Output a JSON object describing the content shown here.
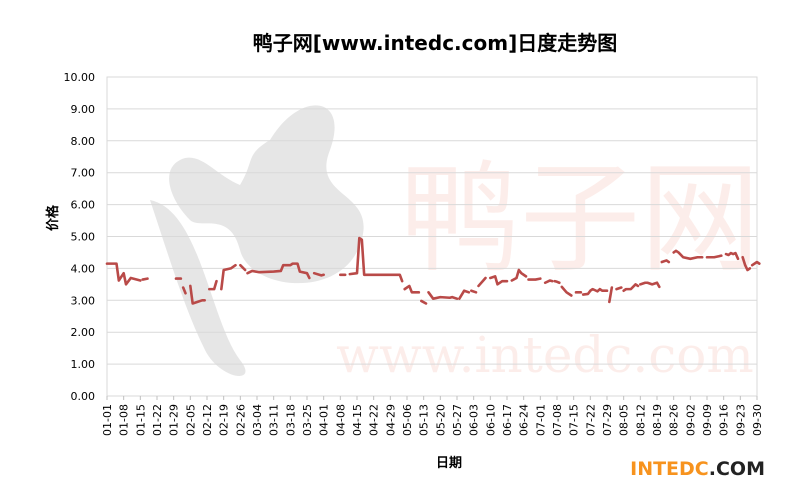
{
  "chart_data": {
    "type": "line",
    "title": "鸭子网[www.intedc.com]日度走势图",
    "xlabel": "日期",
    "ylabel": "价格",
    "ylim": [
      0,
      10
    ],
    "y_ticks": [
      "0.00",
      "1.00",
      "2.00",
      "3.00",
      "4.00",
      "5.00",
      "6.00",
      "7.00",
      "8.00",
      "9.00",
      "10.00"
    ],
    "grid": true,
    "categories": [
      "01-01",
      "01-08",
      "01-15",
      "01-22",
      "01-29",
      "02-05",
      "02-12",
      "02-19",
      "02-26",
      "03-04",
      "03-11",
      "03-18",
      "03-25",
      "04-01",
      "04-08",
      "04-15",
      "04-22",
      "04-29",
      "05-06",
      "05-13",
      "05-20",
      "05-27",
      "06-03",
      "06-10",
      "06-17",
      "06-24",
      "07-01",
      "07-08",
      "07-15",
      "07-22",
      "07-29",
      "08-05",
      "08-12",
      "08-19",
      "08-26",
      "09-02",
      "09-09",
      "09-16",
      "09-23",
      "09-30"
    ],
    "series": [
      {
        "color": "#b94a48",
        "segments": [
          [
            [
              0,
              4.15
            ],
            [
              0.57,
              4.15
            ],
            [
              0.71,
              3.62
            ],
            [
              1.0,
              3.85
            ],
            [
              1.14,
              3.5
            ],
            [
              1.43,
              3.7
            ],
            [
              2.0,
              3.62
            ]
          ],
          [
            [
              2.14,
              3.65
            ],
            [
              2.43,
              3.68
            ]
          ],
          [
            [
              4.14,
              3.68
            ],
            [
              4.43,
              3.68
            ]
          ],
          [
            [
              4.57,
              3.4
            ],
            [
              4.71,
              3.22
            ]
          ],
          [
            [
              5.0,
              3.45
            ],
            [
              5.14,
              2.9
            ],
            [
              5.43,
              2.95
            ],
            [
              5.71,
              3.0
            ],
            [
              5.86,
              3.0
            ]
          ],
          [
            [
              6.14,
              3.35
            ],
            [
              6.43,
              3.35
            ],
            [
              6.57,
              3.6
            ]
          ],
          [
            [
              6.86,
              3.35
            ],
            [
              7.0,
              3.95
            ],
            [
              7.43,
              4.0
            ],
            [
              7.71,
              4.1
            ]
          ],
          [
            [
              8.0,
              4.1
            ],
            [
              8.29,
              3.95
            ]
          ],
          [
            [
              8.43,
              3.85
            ],
            [
              8.71,
              3.92
            ],
            [
              9.14,
              3.88
            ],
            [
              10.0,
              3.9
            ],
            [
              10.43,
              3.92
            ],
            [
              10.57,
              4.1
            ],
            [
              11.0,
              4.1
            ],
            [
              11.14,
              4.15
            ],
            [
              11.43,
              4.15
            ],
            [
              11.57,
              3.9
            ],
            [
              12.0,
              3.85
            ],
            [
              12.14,
              3.7
            ]
          ],
          [
            [
              12.43,
              3.85
            ],
            [
              12.86,
              3.78
            ],
            [
              13.0,
              3.8
            ]
          ],
          [
            [
              14.0,
              3.8
            ],
            [
              14.29,
              3.8
            ]
          ],
          [
            [
              14.57,
              3.82
            ],
            [
              15.0,
              3.85
            ],
            [
              15.14,
              4.95
            ],
            [
              15.29,
              4.9
            ],
            [
              15.43,
              3.8
            ],
            [
              16.0,
              3.8
            ],
            [
              17.0,
              3.8
            ],
            [
              17.57,
              3.8
            ],
            [
              17.71,
              3.6
            ]
          ],
          [
            [
              17.86,
              3.35
            ],
            [
              18.14,
              3.45
            ],
            [
              18.29,
              3.25
            ],
            [
              18.71,
              3.25
            ]
          ],
          [
            [
              18.86,
              2.98
            ],
            [
              19.14,
              2.9
            ]
          ],
          [
            [
              19.29,
              3.25
            ],
            [
              19.57,
              3.05
            ],
            [
              20.0,
              3.1
            ],
            [
              20.57,
              3.08
            ],
            [
              20.71,
              3.1
            ],
            [
              21.0,
              3.05
            ]
          ],
          [
            [
              21.14,
              3.05
            ],
            [
              21.43,
              3.3
            ],
            [
              21.71,
              3.25
            ]
          ],
          [
            [
              21.86,
              3.3
            ],
            [
              22.14,
              3.25
            ]
          ],
          [
            [
              22.29,
              3.45
            ],
            [
              22.71,
              3.7
            ]
          ],
          [
            [
              23.0,
              3.7
            ],
            [
              23.29,
              3.75
            ],
            [
              23.43,
              3.5
            ],
            [
              23.71,
              3.6
            ],
            [
              24.0,
              3.6
            ]
          ],
          [
            [
              24.29,
              3.62
            ],
            [
              24.57,
              3.7
            ],
            [
              24.71,
              3.95
            ],
            [
              24.86,
              3.85
            ],
            [
              25.14,
              3.75
            ]
          ],
          [
            [
              25.29,
              3.65
            ],
            [
              25.71,
              3.65
            ],
            [
              26.0,
              3.68
            ]
          ],
          [
            [
              26.29,
              3.55
            ],
            [
              26.57,
              3.62
            ],
            [
              26.71,
              3.6
            ]
          ],
          [
            [
              26.86,
              3.6
            ],
            [
              27.0,
              3.58
            ],
            [
              27.14,
              3.55
            ]
          ],
          [
            [
              27.29,
              3.42
            ],
            [
              27.57,
              3.25
            ],
            [
              27.86,
              3.15
            ]
          ],
          [
            [
              28.14,
              3.25
            ],
            [
              28.43,
              3.25
            ]
          ],
          [
            [
              28.57,
              3.18
            ],
            [
              28.86,
              3.2
            ],
            [
              29.0,
              3.3
            ],
            [
              29.14,
              3.35
            ],
            [
              29.43,
              3.28
            ],
            [
              29.57,
              3.35
            ],
            [
              29.71,
              3.3
            ],
            [
              30.0,
              3.3
            ]
          ],
          [
            [
              30.14,
              2.95
            ],
            [
              30.29,
              3.4
            ]
          ],
          [
            [
              30.57,
              3.35
            ],
            [
              30.86,
              3.4
            ]
          ],
          [
            [
              31.0,
              3.3
            ],
            [
              31.14,
              3.35
            ],
            [
              31.43,
              3.35
            ],
            [
              31.71,
              3.5
            ],
            [
              31.86,
              3.45
            ]
          ],
          [
            [
              32.0,
              3.5
            ],
            [
              32.29,
              3.55
            ],
            [
              32.43,
              3.55
            ],
            [
              32.71,
              3.5
            ],
            [
              33.0,
              3.55
            ],
            [
              33.14,
              3.42
            ]
          ],
          [
            [
              33.29,
              4.2
            ],
            [
              33.57,
              4.25
            ],
            [
              33.71,
              4.2
            ]
          ],
          [
            [
              34.0,
              4.5
            ],
            [
              34.14,
              4.55
            ],
            [
              34.29,
              4.5
            ],
            [
              34.57,
              4.35
            ],
            [
              35.0,
              4.3
            ],
            [
              35.43,
              4.35
            ],
            [
              35.71,
              4.35
            ]
          ],
          [
            [
              36.0,
              4.35
            ],
            [
              36.43,
              4.35
            ],
            [
              36.71,
              4.38
            ],
            [
              36.86,
              4.4
            ]
          ],
          [
            [
              37.14,
              4.45
            ],
            [
              37.29,
              4.42
            ],
            [
              37.43,
              4.48
            ],
            [
              37.57,
              4.45
            ],
            [
              37.71,
              4.48
            ],
            [
              37.86,
              4.3
            ]
          ],
          [
            [
              38.14,
              4.35
            ],
            [
              38.29,
              4.1
            ],
            [
              38.43,
              3.95
            ],
            [
              38.57,
              4.0
            ]
          ],
          [
            [
              38.71,
              4.1
            ],
            [
              39.0,
              4.2
            ],
            [
              39.14,
              4.15
            ]
          ]
        ]
      }
    ]
  },
  "watermark": {
    "url_text": "www.intedc.com",
    "brand_text": "鸭子网",
    "logo_text": "INTEDC.COM",
    "logo_colors": [
      "#f7931e",
      "#222222"
    ]
  }
}
